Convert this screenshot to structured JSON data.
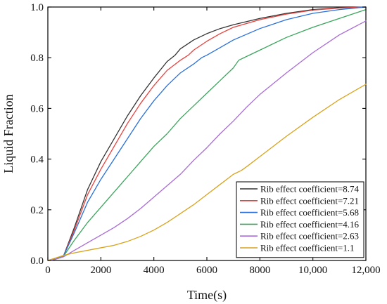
{
  "chart_data": {
    "type": "line",
    "title": "",
    "xlabel": "Time(s)",
    "ylabel": "Liquid Fraction",
    "xlim": [
      0,
      12000
    ],
    "ylim": [
      0,
      1
    ],
    "xticks": [
      0,
      2000,
      4000,
      6000,
      8000,
      10000,
      12000
    ],
    "xtick_labels": [
      "0",
      "2000",
      "4000",
      "6000",
      "8000",
      "10,000",
      "12,000"
    ],
    "yticks": [
      0,
      0.2,
      0.4,
      0.6,
      0.8,
      1.0
    ],
    "ytick_labels": [
      "0.0",
      "0.2",
      "0.4",
      "0.6",
      "0.8",
      "1.0"
    ],
    "grid": false,
    "legend_position": "bottom-right",
    "series": [
      {
        "name": "Rib effect coefficient=8.74",
        "color": "#333333",
        "x": [
          0,
          300,
          600,
          1000,
          1500,
          2000,
          2500,
          3000,
          3500,
          4000,
          4500,
          4800,
          5000,
          5500,
          6000,
          6500,
          7000,
          8000,
          9000,
          10000,
          11000,
          12000
        ],
        "y": [
          0,
          0.005,
          0.02,
          0.13,
          0.28,
          0.39,
          0.48,
          0.57,
          0.65,
          0.72,
          0.785,
          0.81,
          0.835,
          0.87,
          0.895,
          0.915,
          0.93,
          0.955,
          0.975,
          0.99,
          0.997,
          1.0
        ]
      },
      {
        "name": "Rib effect coefficient=7.21",
        "color": "#e8413c",
        "x": [
          0,
          300,
          600,
          1000,
          1500,
          2000,
          2500,
          3000,
          3500,
          4000,
          4500,
          5000,
          5300,
          5500,
          6000,
          6500,
          7000,
          8000,
          9000,
          10000,
          11000,
          12000
        ],
        "y": [
          0,
          0.005,
          0.02,
          0.12,
          0.26,
          0.36,
          0.45,
          0.54,
          0.62,
          0.69,
          0.75,
          0.79,
          0.81,
          0.83,
          0.865,
          0.895,
          0.92,
          0.95,
          0.972,
          0.988,
          0.996,
          1.0
        ]
      },
      {
        "name": "Rib effect coefficient=5.68",
        "color": "#2a6fdb",
        "x": [
          0,
          300,
          600,
          1000,
          1500,
          2000,
          2500,
          3000,
          3500,
          4000,
          4500,
          5000,
          5500,
          5800,
          6000,
          6500,
          7000,
          8000,
          9000,
          10000,
          11000,
          12000
        ],
        "y": [
          0,
          0.005,
          0.02,
          0.11,
          0.23,
          0.32,
          0.4,
          0.48,
          0.56,
          0.63,
          0.69,
          0.74,
          0.775,
          0.8,
          0.81,
          0.84,
          0.87,
          0.915,
          0.95,
          0.975,
          0.99,
          1.0
        ]
      },
      {
        "name": "Rib effect coefficient=4.16",
        "color": "#3aa55c",
        "x": [
          0,
          300,
          600,
          1000,
          1500,
          2000,
          2500,
          3000,
          3500,
          4000,
          4500,
          5000,
          5500,
          6000,
          6500,
          7000,
          7200,
          7500,
          8000,
          9000,
          10000,
          11000,
          12000
        ],
        "y": [
          0,
          0.005,
          0.018,
          0.08,
          0.15,
          0.21,
          0.27,
          0.33,
          0.39,
          0.45,
          0.5,
          0.56,
          0.61,
          0.66,
          0.71,
          0.76,
          0.79,
          0.805,
          0.83,
          0.88,
          0.92,
          0.955,
          0.99
        ]
      },
      {
        "name": "Rib effect coefficient=2.63",
        "color": "#a96bd6",
        "x": [
          0,
          300,
          600,
          1000,
          1500,
          2000,
          2500,
          3000,
          3500,
          4000,
          4500,
          5000,
          5500,
          6000,
          6500,
          7000,
          7500,
          8000,
          9000,
          10000,
          11000,
          12000
        ],
        "y": [
          0,
          0.005,
          0.015,
          0.04,
          0.07,
          0.1,
          0.13,
          0.165,
          0.205,
          0.25,
          0.295,
          0.34,
          0.395,
          0.445,
          0.5,
          0.55,
          0.605,
          0.655,
          0.74,
          0.82,
          0.89,
          0.945
        ]
      },
      {
        "name": "Rib effect coefficient=1.1",
        "color": "#d9a21b",
        "x": [
          0,
          300,
          600,
          1000,
          1500,
          2000,
          2500,
          3000,
          3500,
          4000,
          4500,
          5000,
          5500,
          6000,
          6500,
          7000,
          7300,
          7500,
          8000,
          9000,
          10000,
          11000,
          12000
        ],
        "y": [
          0,
          0.01,
          0.02,
          0.03,
          0.04,
          0.05,
          0.06,
          0.075,
          0.095,
          0.12,
          0.15,
          0.185,
          0.22,
          0.26,
          0.3,
          0.34,
          0.355,
          0.37,
          0.41,
          0.49,
          0.565,
          0.635,
          0.695
        ]
      }
    ]
  }
}
